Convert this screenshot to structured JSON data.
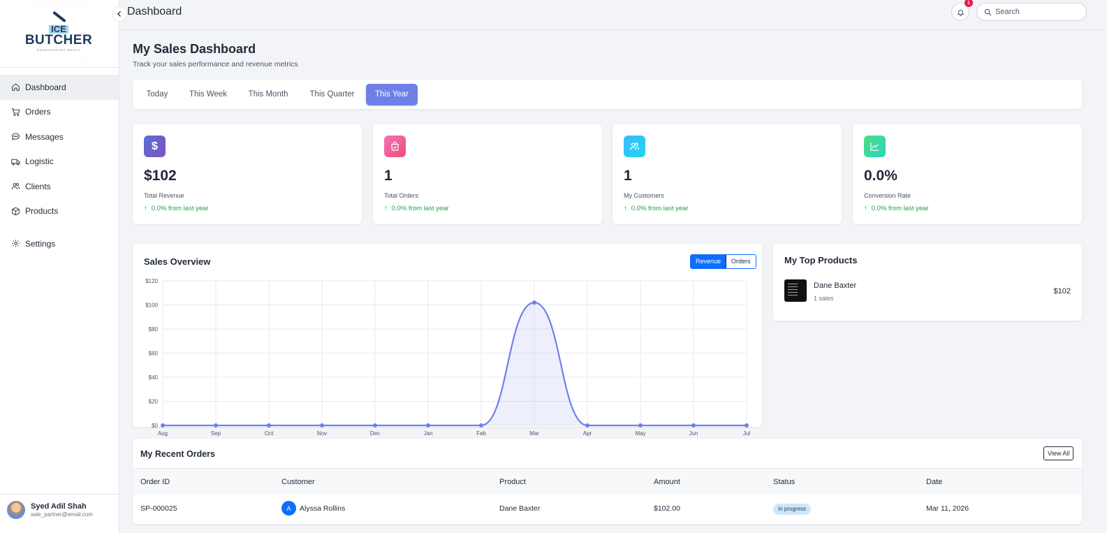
{
  "app": {
    "logo": {
      "line1": "ICE",
      "line2": "BUTCHER",
      "tagline": "HANDCRAFTED MEATS"
    },
    "header_title": "Dashboard",
    "notification_count": "1",
    "search_placeholder": "Search"
  },
  "sidebar": {
    "items": [
      {
        "label": "Dashboard",
        "icon": "home-icon",
        "active": true
      },
      {
        "label": "Orders",
        "icon": "cart-icon"
      },
      {
        "label": "Messages",
        "icon": "chat-icon"
      },
      {
        "label": "Logistic",
        "icon": "truck-icon"
      },
      {
        "label": "Clients",
        "icon": "users-icon"
      },
      {
        "label": "Products",
        "icon": "box-icon"
      },
      {
        "label": "Settings",
        "icon": "gear-icon"
      }
    ],
    "user": {
      "name": "Syed Adil Shah",
      "email": "sale_partner@email.com"
    }
  },
  "page": {
    "title": "My Sales Dashboard",
    "subtitle": "Track your sales performance and revenue metrics"
  },
  "periods": {
    "tabs": [
      "Today",
      "This Week",
      "This Month",
      "This Quarter",
      "This Year"
    ],
    "active": "This Year"
  },
  "stats": [
    {
      "value": "$102",
      "label": "Total Revenue",
      "trend": "0.0% from last year",
      "icon": "dollar-icon",
      "color": "#6d5fc7"
    },
    {
      "value": "1",
      "label": "Total Orders",
      "trend": "0.0% from last year",
      "icon": "shopping-bag-icon",
      "color": "#ec5f98"
    },
    {
      "value": "1",
      "label": "My Customers",
      "trend": "0.0% from last year",
      "icon": "users-icon",
      "color": "#29bfee"
    },
    {
      "value": "0.0%",
      "label": "Conversion Rate",
      "trend": "0.0% from last year",
      "icon": "chart-line-icon",
      "color": "#34d399"
    }
  ],
  "sales_overview": {
    "title": "Sales Overview",
    "toggle": {
      "revenue": "Revenue",
      "orders": "Orders",
      "active": "Revenue"
    }
  },
  "chart_data": {
    "type": "area",
    "categories": [
      "Aug",
      "Sep",
      "Oct",
      "Nov",
      "Dec",
      "Jan",
      "Feb",
      "Mar",
      "Apr",
      "May",
      "Jun",
      "Jul"
    ],
    "series": [
      {
        "values": [
          0,
          0,
          0,
          0,
          0,
          0,
          0,
          102,
          0,
          0,
          0,
          0
        ],
        "color": "#6e80e8"
      }
    ],
    "yticks": [
      "$0",
      "$20",
      "$40",
      "$60",
      "$80",
      "$100",
      "$120"
    ],
    "ylim": [
      0,
      120
    ],
    "grid": true,
    "title": "",
    "xlabel": "",
    "ylabel": ""
  },
  "top_products": {
    "title": "My Top Products",
    "items": [
      {
        "name": "Dane Baxter",
        "sales": "1 sales",
        "amount": "$102"
      }
    ]
  },
  "recent_orders": {
    "title": "My Recent Orders",
    "view_all": "View All",
    "columns": [
      "Order ID",
      "Customer",
      "Product",
      "Amount",
      "Status",
      "Date"
    ],
    "rows": [
      {
        "order_id": "SP-000025",
        "customer_initial": "A",
        "customer": "Alyssa Rollins",
        "product": "Dane Baxter",
        "amount": "$102.00",
        "status": "In progress",
        "date": "Mar 11, 2026"
      }
    ]
  }
}
